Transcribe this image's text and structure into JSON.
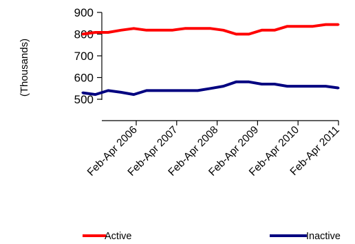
{
  "chart_data": {
    "type": "line",
    "title": "",
    "xlabel": "",
    "ylabel": "(Thousands)",
    "ylim": [
      500,
      900
    ],
    "yticks": [
      500,
      600,
      700,
      800,
      900
    ],
    "x_tick_labels": [
      "Feb-Apr 2006",
      "Feb-Apr 2007",
      "Feb-Apr 2008",
      "Feb-Apr 2009",
      "Feb-Apr 2010",
      "Feb-Apr 2011"
    ],
    "points_per_year": 4,
    "grid": false,
    "legend_position": "bottom",
    "series": [
      {
        "name": "Active",
        "color": "#ff0000",
        "values": [
          800,
          808,
          808,
          818,
          826,
          818,
          818,
          818,
          826,
          826,
          826,
          818,
          800,
          800,
          818,
          818,
          836,
          836,
          836,
          844,
          844
        ]
      },
      {
        "name": "Inactive",
        "color": "#000080",
        "values": [
          530,
          522,
          540,
          532,
          522,
          540,
          540,
          540,
          540,
          540,
          550,
          560,
          580,
          580,
          570,
          570,
          560,
          560,
          560,
          560,
          552
        ]
      }
    ]
  }
}
